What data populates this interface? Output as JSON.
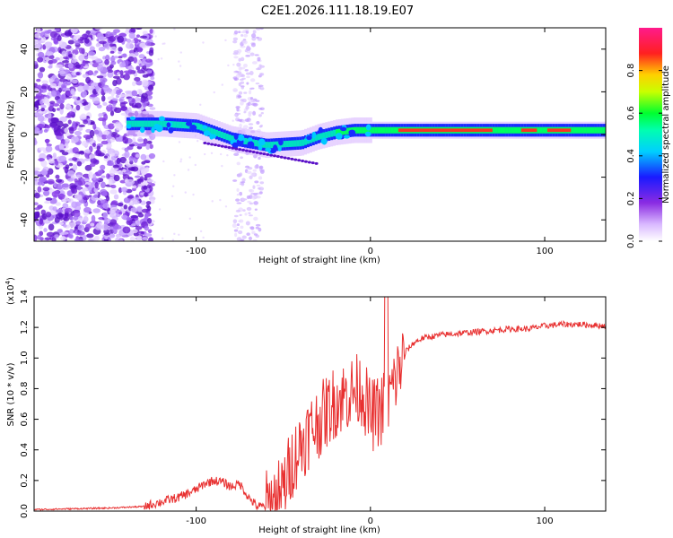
{
  "figure": {
    "title": "C2E1.2026.111.18.19.E07"
  },
  "chart_data": [
    {
      "type": "heatmap",
      "xlabel": "Height of straight line (km)",
      "ylabel": "Frequency (Hz)",
      "xlim": [
        -193,
        135
      ],
      "ylim": [
        -50,
        50
      ],
      "x_ticks": [
        -100,
        0,
        100
      ],
      "y_ticks": [
        -40,
        -20,
        0,
        20,
        40
      ],
      "colorbar": {
        "label": "Normalized spectral amplitude",
        "range": [
          0.0,
          1.0
        ],
        "ticks": [
          0.0,
          0.2,
          0.4,
          0.6,
          0.8
        ]
      },
      "ridge": {
        "description_x": [
          -140,
          -120,
          -100,
          -80,
          -60,
          -40,
          -30,
          -20,
          -10,
          0,
          20,
          60,
          80,
          100,
          135
        ],
        "freq_hz": [
          5,
          5,
          4,
          -2,
          -5,
          -4,
          -1,
          1,
          2,
          2,
          2,
          2,
          2,
          2,
          2
        ],
        "amplitude": [
          0.4,
          0.5,
          0.55,
          0.5,
          0.45,
          0.4,
          0.5,
          0.6,
          0.7,
          0.75,
          0.8,
          0.85,
          0.8,
          0.85,
          0.6
        ]
      }
    },
    {
      "type": "line",
      "xlabel": "Height of straight line (km)",
      "ylabel": "SNR (10 * v/v)",
      "y_multiplier_label": "(x10",
      "y_multiplier_exp": "4",
      "y_multiplier_close": ")",
      "xlim": [
        -193,
        135
      ],
      "ylim": [
        0.0,
        1.4
      ],
      "x_ticks": [
        -100,
        0,
        100
      ],
      "y_ticks": [
        "0.0",
        "0.2",
        "0.4",
        "0.6",
        "0.8",
        "1.0",
        "1.2",
        "1.4"
      ],
      "series": [
        {
          "name": "SNR",
          "color": "#e83030",
          "x": [
            -193,
            -150,
            -130,
            -120,
            -110,
            -100,
            -95,
            -90,
            -85,
            -80,
            -75,
            -70,
            -65,
            -60,
            -55,
            -50,
            -45,
            -40,
            -35,
            -30,
            -25,
            -20,
            -15,
            -10,
            -5,
            0,
            5,
            10,
            15,
            20,
            25,
            30,
            40,
            50,
            60,
            70,
            80,
            90,
            100,
            110,
            120,
            135
          ],
          "values": [
            0.01,
            0.02,
            0.03,
            0.06,
            0.09,
            0.14,
            0.18,
            0.2,
            0.19,
            0.16,
            0.18,
            0.09,
            0.03,
            0.03,
            0.06,
            0.15,
            0.32,
            0.43,
            0.52,
            0.58,
            0.65,
            0.72,
            0.75,
            0.78,
            0.8,
            0.62,
            0.65,
            0.72,
            0.88,
            1.04,
            1.1,
            1.13,
            1.15,
            1.16,
            1.17,
            1.18,
            1.19,
            1.19,
            1.21,
            1.22,
            1.22,
            1.21
          ]
        }
      ]
    }
  ]
}
